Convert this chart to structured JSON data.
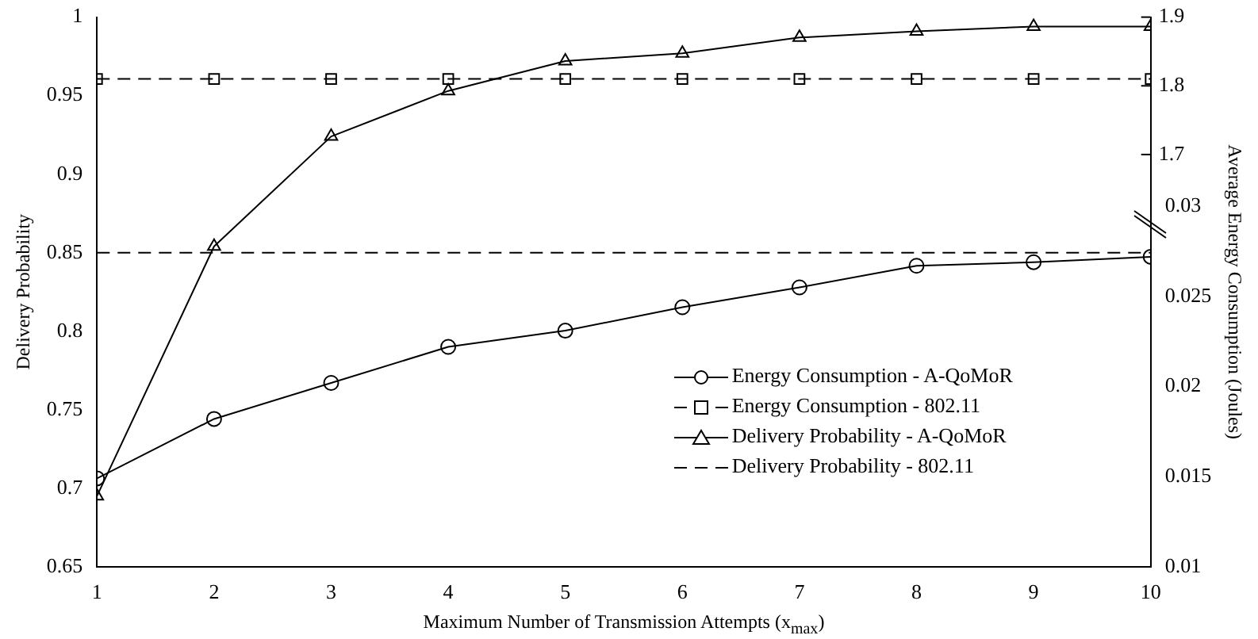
{
  "chart_data": {
    "type": "line",
    "xlabel": "Maximum Number of Transmission Attempts (x$_{max}$)",
    "ylabel": "Delivery Probability",
    "y2label": "Average Energy Consumption (Joules)",
    "x": [
      1,
      2,
      3,
      4,
      5,
      6,
      7,
      8,
      9,
      10
    ],
    "series": [
      {
        "name": "Energy Consumption - A-QoMoR",
        "color": "#000000",
        "axis": "y2",
        "marker": "circle",
        "line_style": "solid",
        "values": [
          0.0149,
          0.0182,
          0.0202,
          0.0222,
          0.0231,
          0.0244,
          0.0255,
          0.0267,
          0.0269,
          0.0272
        ]
      },
      {
        "name": "Energy Consumption - 802.11",
        "color": "#000000",
        "axis": "y3",
        "marker": "square",
        "line_style": "dashed",
        "values": [
          1.81,
          1.81,
          1.81,
          1.81,
          1.81,
          1.81,
          1.81,
          1.81,
          1.81,
          1.81
        ]
      },
      {
        "name": "Delivery Probability - A-QoMoR",
        "color": "#000000",
        "marker": "triangle",
        "line_style": "solid",
        "values": [
          0.695,
          0.854,
          0.924,
          0.953,
          0.972,
          0.977,
          0.987,
          0.991,
          0.994,
          0.994
        ]
      },
      {
        "name": "Delivery Probability - 802.11",
        "color": "#000000",
        "marker": "none",
        "line_style": "dashed",
        "values": [
          0.85,
          0.85,
          0.85,
          0.85,
          0.85,
          0.85,
          0.85,
          0.85,
          0.85,
          0.85
        ]
      }
    ],
    "xlim": [
      1,
      10
    ],
    "xticks": [
      1,
      2,
      3,
      4,
      5,
      6,
      7,
      8,
      9,
      10
    ],
    "ylim": [
      0.65,
      1
    ],
    "yticks": [
      0.65,
      0.7,
      0.75,
      0.8,
      0.85,
      0.9,
      0.95,
      1
    ],
    "y2lim": [
      0.01,
      0.0405
    ],
    "y2ticks": [
      0.01,
      0.015,
      0.02,
      0.025,
      0.03
    ],
    "y3lim": [
      1.1,
      1.9
    ],
    "y3ticks": [
      1.7,
      1.8,
      1.9
    ],
    "legend": "bottom right",
    "grid": false
  }
}
